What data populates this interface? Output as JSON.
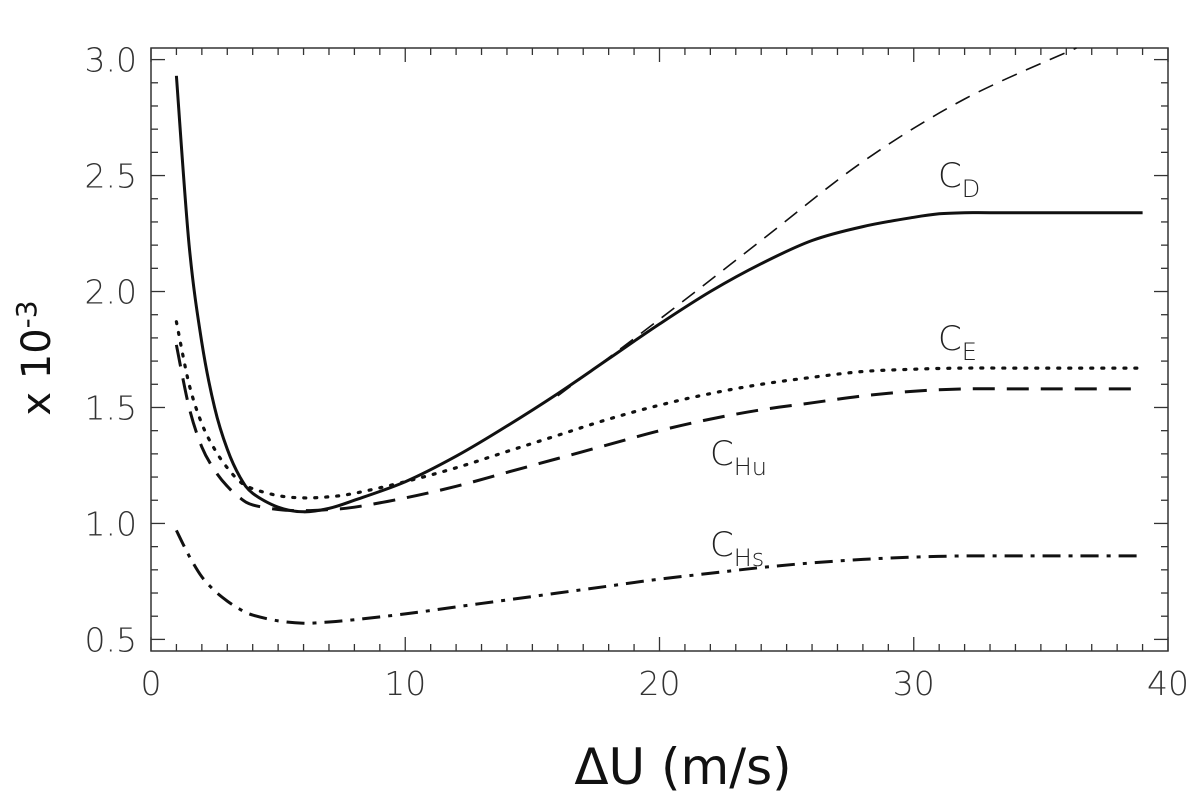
{
  "chart_data": {
    "type": "line",
    "title": "",
    "xlabel": "ΔU (m/s)",
    "ylabel": "x 10",
    "ylabel_exponent": "-3",
    "xlim": [
      0,
      40
    ],
    "ylim": [
      0.45,
      3.05
    ],
    "xticks": [
      0,
      10,
      20,
      30,
      40
    ],
    "xtick_labels": [
      "0",
      "10",
      "20",
      "30",
      "40"
    ],
    "yticks": [
      0.5,
      1.0,
      1.5,
      2.0,
      2.5,
      3.0
    ],
    "ytick_labels": [
      "0.5",
      "1.0",
      "1.5",
      "2.0",
      "2.5",
      "3.0"
    ],
    "grid": false,
    "legend": "inline labels",
    "series": [
      {
        "label_main": "C",
        "label_sub": "D",
        "style": "solid",
        "x": [
          1,
          1.5,
          2,
          2.5,
          3,
          3.5,
          4,
          5,
          6,
          7,
          8,
          10,
          12,
          14,
          16,
          18,
          20,
          22,
          24,
          26,
          28,
          30,
          31,
          32,
          33,
          35,
          37,
          39
        ],
        "y": [
          2.93,
          2.2,
          1.78,
          1.5,
          1.32,
          1.2,
          1.13,
          1.07,
          1.05,
          1.065,
          1.1,
          1.18,
          1.29,
          1.42,
          1.56,
          1.71,
          1.86,
          2.0,
          2.12,
          2.22,
          2.28,
          2.32,
          2.335,
          2.34,
          2.34,
          2.34,
          2.34,
          2.34
        ]
      },
      {
        "label_main": "",
        "label_sub": "",
        "style": "thin-dashed",
        "x": [
          16,
          20,
          24,
          28,
          32,
          36.4
        ],
        "y": [
          1.55,
          1.88,
          2.22,
          2.56,
          2.83,
          3.05
        ]
      },
      {
        "label_main": "C",
        "label_sub": "E",
        "style": "dotted",
        "x": [
          1,
          1.5,
          2,
          2.5,
          3,
          3.5,
          4,
          5,
          6,
          7,
          8,
          10,
          12,
          14,
          16,
          18,
          20,
          22,
          24,
          26,
          28,
          30,
          32,
          34,
          36,
          39
        ],
        "y": [
          1.87,
          1.6,
          1.43,
          1.32,
          1.24,
          1.18,
          1.15,
          1.12,
          1.11,
          1.115,
          1.13,
          1.18,
          1.24,
          1.31,
          1.38,
          1.45,
          1.51,
          1.56,
          1.6,
          1.63,
          1.655,
          1.665,
          1.67,
          1.67,
          1.67,
          1.67
        ]
      },
      {
        "label_main": "C",
        "label_sub": "Hu",
        "style": "dashed",
        "x": [
          1,
          1.5,
          2,
          2.5,
          3,
          3.5,
          4,
          5,
          6,
          7,
          8,
          10,
          12,
          14,
          16,
          18,
          20,
          22,
          24,
          26,
          28,
          30,
          32,
          34,
          36,
          39
        ],
        "y": [
          1.77,
          1.5,
          1.33,
          1.23,
          1.16,
          1.11,
          1.08,
          1.06,
          1.055,
          1.06,
          1.07,
          1.11,
          1.16,
          1.22,
          1.28,
          1.34,
          1.4,
          1.45,
          1.49,
          1.52,
          1.55,
          1.57,
          1.58,
          1.58,
          1.58,
          1.58
        ]
      },
      {
        "label_main": "C",
        "label_sub": "Hs",
        "style": "dash-dot",
        "x": [
          1,
          1.5,
          2,
          2.5,
          3,
          3.5,
          4,
          5,
          6,
          7,
          8,
          10,
          12,
          14,
          16,
          18,
          20,
          22,
          24,
          26,
          28,
          30,
          32,
          34,
          36,
          39
        ],
        "y": [
          0.97,
          0.86,
          0.77,
          0.71,
          0.665,
          0.63,
          0.605,
          0.58,
          0.57,
          0.575,
          0.585,
          0.61,
          0.64,
          0.67,
          0.7,
          0.73,
          0.76,
          0.785,
          0.81,
          0.83,
          0.845,
          0.855,
          0.86,
          0.86,
          0.86,
          0.86
        ]
      }
    ]
  }
}
